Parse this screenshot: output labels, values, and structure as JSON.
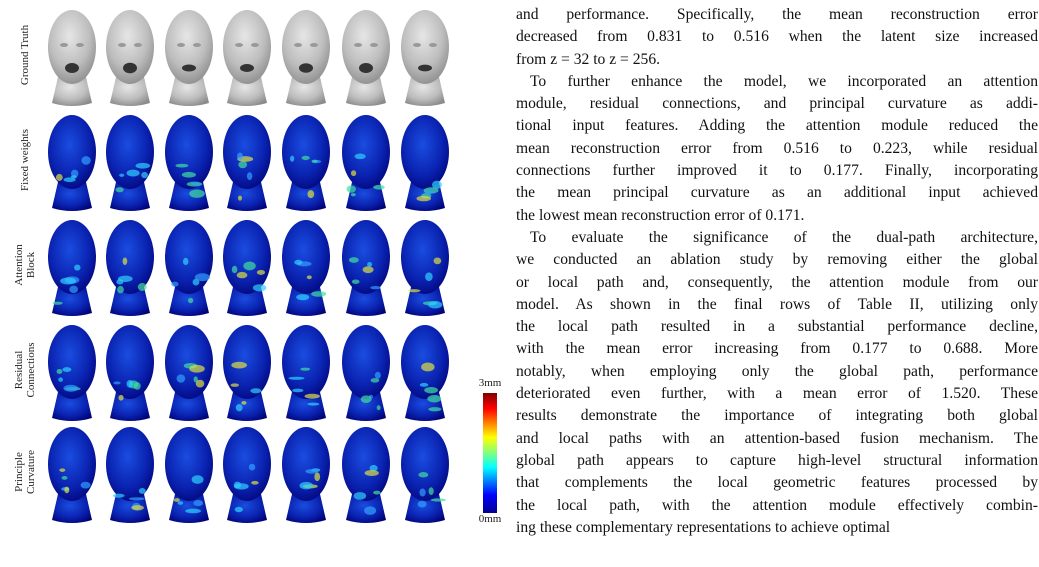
{
  "figure": {
    "row_labels": [
      [
        "Ground Truth"
      ],
      [
        "Fixed weights"
      ],
      [
        "Attention",
        "Block"
      ],
      [
        "Residual",
        "Connections"
      ],
      [
        "Principle",
        "Curvature"
      ]
    ],
    "colorbar": {
      "max_label": "3mm",
      "min_label": "0mm"
    }
  },
  "text": {
    "paragraphs": [
      [
        "and performance. Specifically, the mean reconstruction error",
        "decreased from 0.831 to 0.516 when the latent size increased",
        "from z = 32 to z = 256."
      ],
      [
        "To further enhance the model, we incorporated an attention",
        "module, residual connections, and principal curvature as addi-",
        "tional input features. Adding the attention module reduced the",
        "mean reconstruction error from 0.516 to 0.223, while residual",
        "connections further improved it to 0.177. Finally, incorporating",
        "the mean principal curvature as an additional input achieved",
        "the lowest mean reconstruction error of 0.171."
      ],
      [
        "To evaluate the significance of the dual-path architecture,",
        "we conducted an ablation study by removing either the global",
        "or local path and, consequently, the attention module from our",
        "model. As shown in the final rows of Table II, utilizing only",
        "the local path resulted in a substantial performance decline,",
        "with the mean error increasing from 0.177 to 0.688. More",
        "notably, when employing only the global path, performance",
        "deteriorated even further, with a mean error of 1.520. These",
        "results demonstrate the importance of integrating both global",
        "and local paths with an attention-based fusion mechanism. The",
        "global path appears to capture high-level structural information",
        "that complements the local geometric features processed by",
        "the local path, with the attention module effectively combin-",
        "ing these complementary representations to achieve optimal"
      ]
    ]
  }
}
